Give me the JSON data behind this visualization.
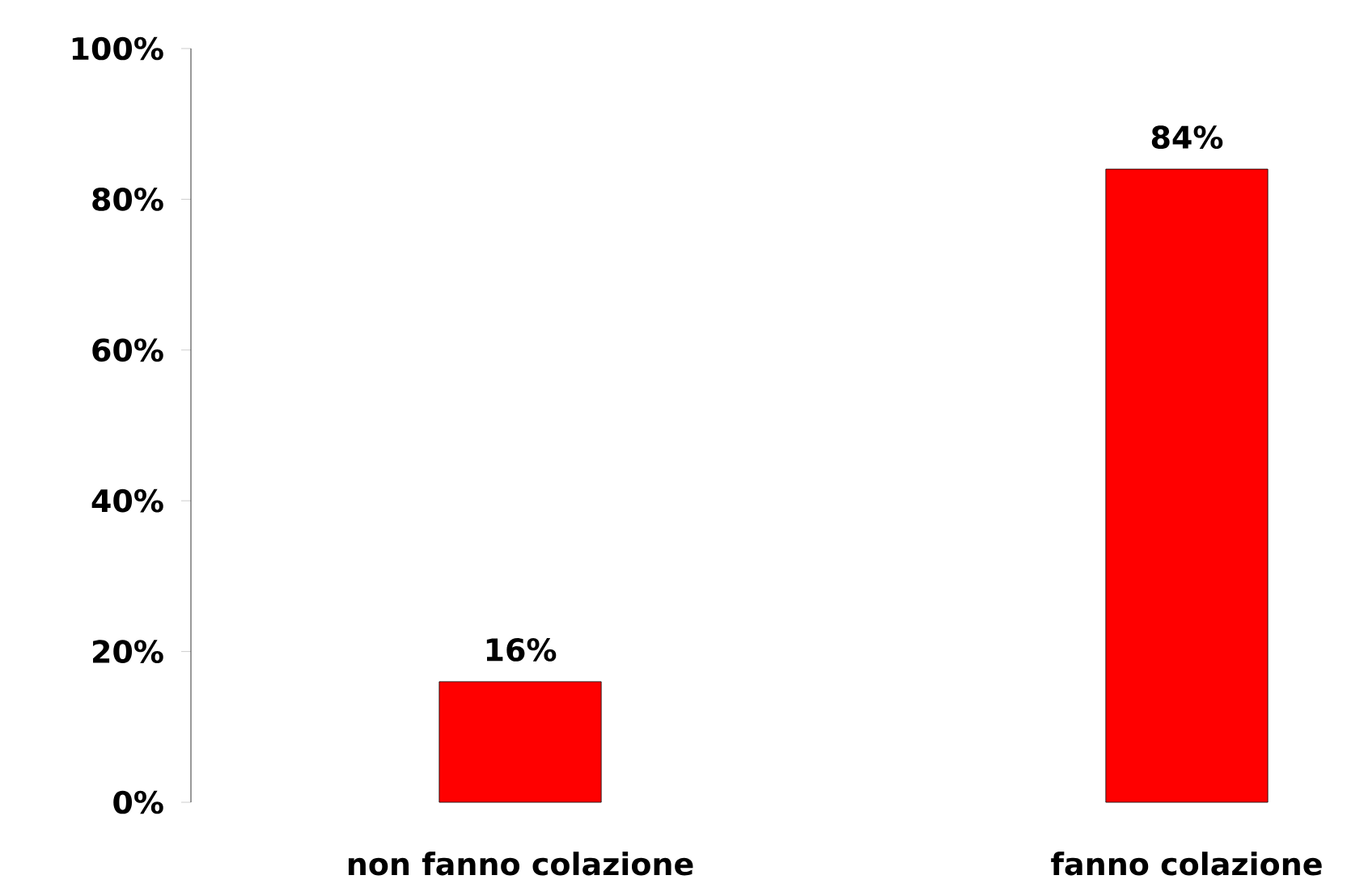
{
  "chart_data": {
    "type": "bar",
    "categories": [
      "non fanno colazione",
      "fanno colazione"
    ],
    "values": [
      16,
      84
    ],
    "value_labels": [
      "16%",
      "84%"
    ],
    "color": "#ff0000",
    "ylim": [
      0,
      100
    ],
    "yticks": [
      {
        "value": 0,
        "label": "0%"
      },
      {
        "value": 20,
        "label": "20%"
      },
      {
        "value": 40,
        "label": "40%"
      },
      {
        "value": 60,
        "label": "60%"
      },
      {
        "value": 80,
        "label": "80%"
      },
      {
        "value": 100,
        "label": "100%"
      }
    ],
    "grid": false
  }
}
